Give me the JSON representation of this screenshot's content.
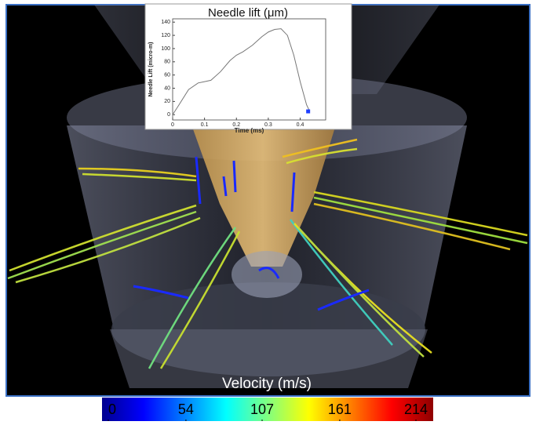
{
  "chart_data": [
    {
      "type": "line",
      "title": "Needle lift (μm)",
      "x_label": "Time (ms)",
      "y_label": "Needle Lift (micro-m)",
      "x": [
        0,
        0.02,
        0.05,
        0.08,
        0.1,
        0.12,
        0.15,
        0.18,
        0.2,
        0.22,
        0.25,
        0.28,
        0.3,
        0.32,
        0.34,
        0.36,
        0.38,
        0.4,
        0.42,
        0.43
      ],
      "series": [
        {
          "color": "#777777",
          "values": [
            0,
            15,
            38,
            48,
            50,
            52,
            65,
            82,
            90,
            95,
            105,
            118,
            125,
            129,
            130,
            120,
            90,
            50,
            15,
            5
          ]
        }
      ],
      "marker": {
        "x": 0.425,
        "y": 5,
        "color": "#1f3fff"
      },
      "xlim": [
        0,
        0.48
      ],
      "ylim": [
        -8,
        145
      ],
      "xticks": [
        0,
        0.1,
        0.2,
        0.3,
        0.4
      ],
      "yticks": [
        0,
        20,
        40,
        60,
        80,
        100,
        120,
        140
      ]
    },
    {
      "type": "colorbar",
      "title": "Velocity (m/s)",
      "xlim": [
        0,
        214
      ],
      "xticks": [
        0,
        54,
        107,
        161,
        214
      ],
      "colors": [
        "#00008f",
        "#0000ff",
        "#0080ff",
        "#00ffff",
        "#80ff80",
        "#ffff00",
        "#ff8000",
        "#ff0000",
        "#8f0000"
      ]
    }
  ]
}
